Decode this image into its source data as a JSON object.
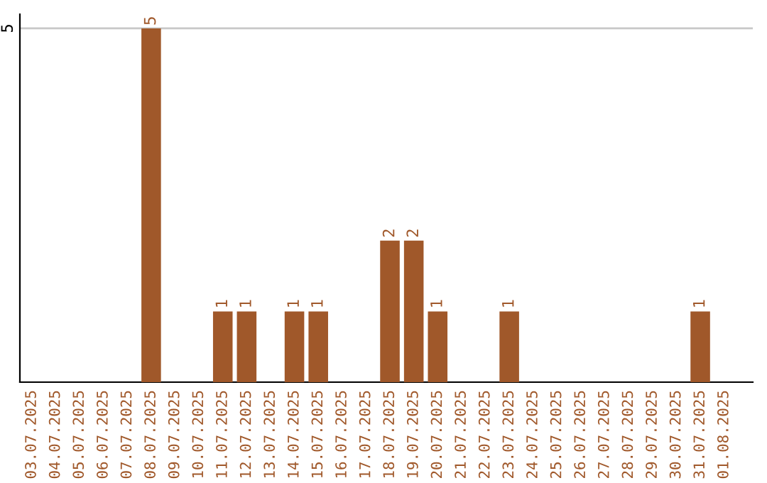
{
  "chart_data": {
    "type": "bar",
    "categories": [
      "03.07.2025",
      "04.07.2025",
      "05.07.2025",
      "06.07.2025",
      "07.07.2025",
      "08.07.2025",
      "09.07.2025",
      "10.07.2025",
      "11.07.2025",
      "12.07.2025",
      "13.07.2025",
      "14.07.2025",
      "15.07.2025",
      "16.07.2025",
      "17.07.2025",
      "18.07.2025",
      "19.07.2025",
      "20.07.2025",
      "21.07.2025",
      "22.07.2025",
      "23.07.2025",
      "24.07.2025",
      "25.07.2025",
      "26.07.2025",
      "27.07.2025",
      "28.07.2025",
      "29.07.2025",
      "30.07.2025",
      "31.07.2025",
      "01.08.2025"
    ],
    "values": [
      0,
      0,
      0,
      0,
      0,
      5,
      0,
      0,
      1,
      1,
      0,
      1,
      1,
      0,
      0,
      2,
      2,
      1,
      0,
      0,
      1,
      0,
      0,
      0,
      0,
      0,
      0,
      0,
      1,
      0
    ],
    "color": "#a0582a",
    "value_labels": [
      null,
      null,
      null,
      null,
      null,
      "5",
      null,
      null,
      "1",
      "1",
      null,
      "1",
      "1",
      null,
      null,
      "2",
      "2",
      "1",
      null,
      null,
      "1",
      null,
      null,
      null,
      null,
      null,
      null,
      null,
      "1",
      null
    ],
    "ylim": [
      0,
      5.2
    ],
    "yticks": [
      5
    ],
    "grid": "y"
  }
}
